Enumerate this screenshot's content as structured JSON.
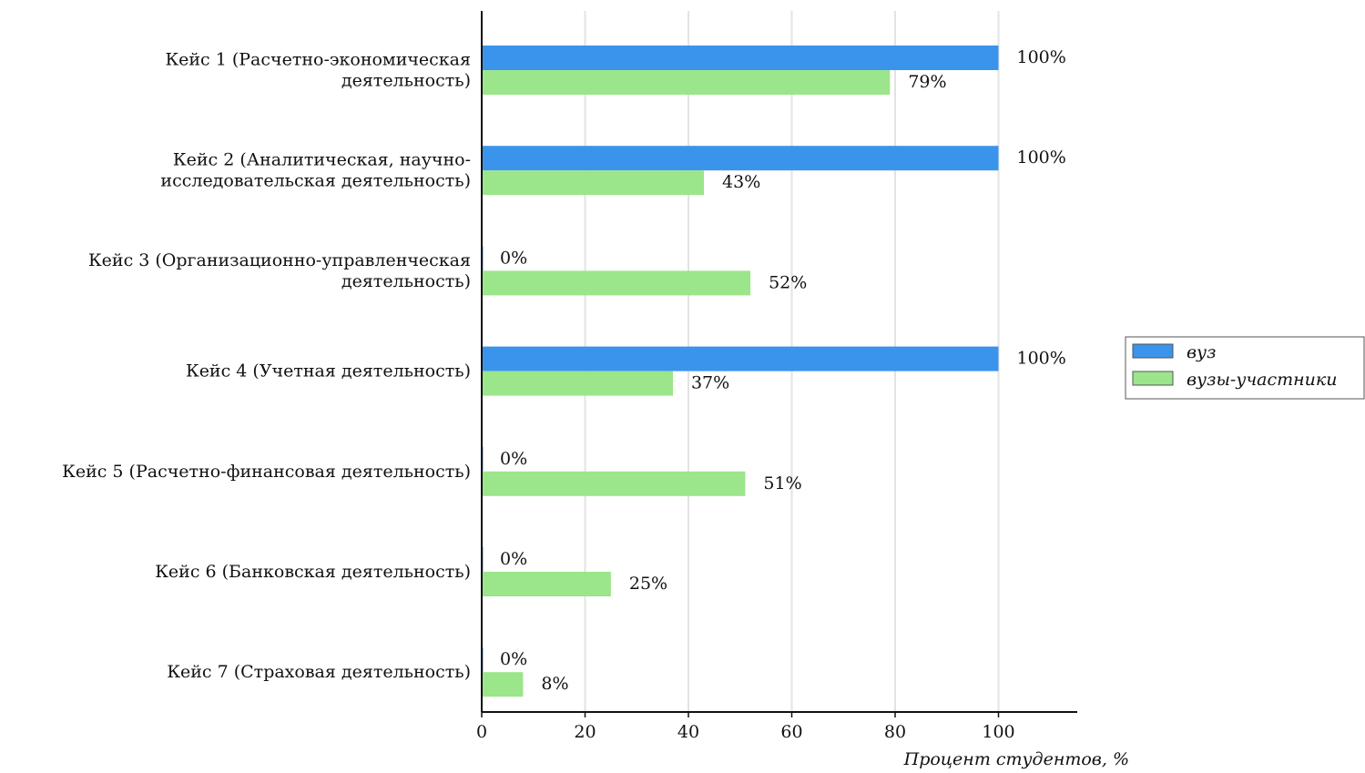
{
  "chart_data": {
    "type": "bar",
    "orientation": "horizontal",
    "categories": [
      [
        "Кейс 1 (Расчетно-экономическая",
        "деятельность)"
      ],
      [
        "Кейс 2 (Аналитическая, научно-",
        "исследовательская деятельность)"
      ],
      [
        "Кейс 3 (Организационно-управленческая",
        "деятельность)"
      ],
      [
        "Кейс 4 (Учетная деятельность)"
      ],
      [
        "Кейс 5 (Расчетно-финансовая деятельность)"
      ],
      [
        "Кейс 6 (Банковская деятельность)"
      ],
      [
        "Кейс 7 (Страховая деятельность)"
      ]
    ],
    "series": [
      {
        "name": "вуз",
        "color": "#3b94ec",
        "values": [
          100,
          100,
          0,
          100,
          0,
          0,
          0
        ],
        "labels": [
          "100%",
          "100%",
          "0%",
          "100%",
          "0%",
          "0%",
          "0%"
        ]
      },
      {
        "name": "вузы-участники",
        "color": "#9be58a",
        "values": [
          79,
          43,
          52,
          37,
          51,
          25,
          8
        ],
        "labels": [
          "79%",
          "43%",
          "52%",
          "37%",
          "51%",
          "25%",
          "8%"
        ]
      }
    ],
    "xlabel": "Процент студентов, %",
    "xticks": [
      0,
      20,
      40,
      60,
      80,
      100
    ],
    "xlim": [
      0,
      115
    ],
    "grid": "vertical",
    "legend": "right"
  }
}
